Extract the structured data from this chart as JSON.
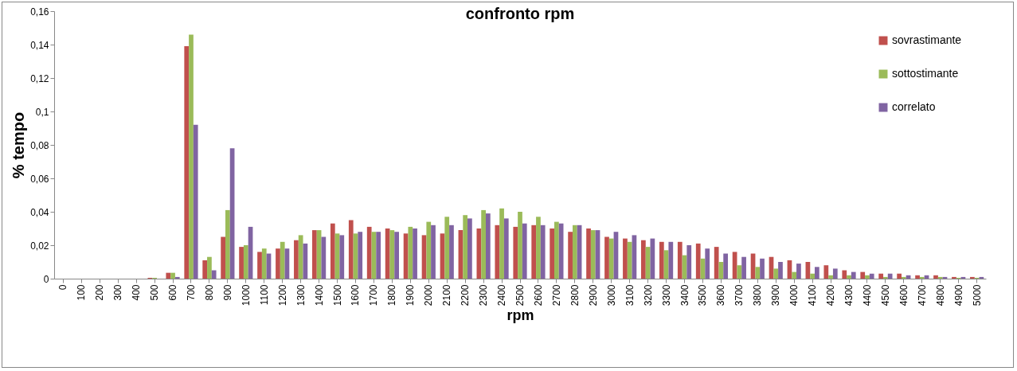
{
  "chart_data": {
    "type": "bar",
    "title": "confronto rpm",
    "xlabel": "rpm",
    "ylabel": "% tempo",
    "categories": [
      "0",
      "100",
      "200",
      "300",
      "400",
      "500",
      "600",
      "700",
      "800",
      "900",
      "1000",
      "1100",
      "1200",
      "1300",
      "1400",
      "1500",
      "1600",
      "1700",
      "1800",
      "1900",
      "2000",
      "2100",
      "2200",
      "2300",
      "2400",
      "2500",
      "2600",
      "2700",
      "2800",
      "2900",
      "3000",
      "3100",
      "3200",
      "3300",
      "3400",
      "3500",
      "3600",
      "3700",
      "3800",
      "3900",
      "4000",
      "4100",
      "4200",
      "4300",
      "4400",
      "4500",
      "4600",
      "4700",
      "4800",
      "4900",
      "5000"
    ],
    "series": [
      {
        "name": "sovrastimante",
        "color": "#c0504d",
        "values": [
          0,
          0,
          0,
          0,
          0,
          0.0005,
          0.0035,
          0.139,
          0.011,
          0.025,
          0.019,
          0.016,
          0.018,
          0.023,
          0.029,
          0.033,
          0.035,
          0.031,
          0.03,
          0.027,
          0.026,
          0.027,
          0.029,
          0.03,
          0.032,
          0.031,
          0.032,
          0.03,
          0.028,
          0.03,
          0.025,
          0.024,
          0.023,
          0.022,
          0.022,
          0.021,
          0.019,
          0.016,
          0.015,
          0.013,
          0.011,
          0.01,
          0.008,
          0.005,
          0.004,
          0.003,
          0.003,
          0.002,
          0.002,
          0.001,
          0.001
        ]
      },
      {
        "name": "sottostimante",
        "color": "#9bbb59",
        "values": [
          0,
          0,
          0,
          0,
          0,
          0.0005,
          0.0035,
          0.146,
          0.013,
          0.041,
          0.02,
          0.018,
          0.022,
          0.026,
          0.029,
          0.027,
          0.027,
          0.028,
          0.029,
          0.031,
          0.034,
          0.037,
          0.038,
          0.041,
          0.042,
          0.04,
          0.037,
          0.034,
          0.032,
          0.029,
          0.024,
          0.022,
          0.019,
          0.017,
          0.014,
          0.012,
          0.01,
          0.008,
          0.007,
          0.006,
          0.004,
          0.003,
          0.002,
          0.002,
          0.002,
          0.001,
          0.001,
          0.001,
          0.001,
          0.0005,
          0.0005
        ]
      },
      {
        "name": "correlato",
        "color": "#8064a2",
        "values": [
          0,
          0,
          0,
          0,
          0,
          0,
          0.001,
          0.092,
          0.005,
          0.078,
          0.031,
          0.015,
          0.018,
          0.021,
          0.025,
          0.026,
          0.028,
          0.028,
          0.028,
          0.03,
          0.032,
          0.032,
          0.036,
          0.039,
          0.036,
          0.033,
          0.032,
          0.033,
          0.032,
          0.029,
          0.028,
          0.026,
          0.024,
          0.022,
          0.02,
          0.018,
          0.015,
          0.013,
          0.012,
          0.01,
          0.009,
          0.007,
          0.006,
          0.004,
          0.003,
          0.003,
          0.002,
          0.002,
          0.001,
          0.001,
          0.001
        ]
      }
    ],
    "ylim": [
      0,
      0.16
    ],
    "yticks": [
      0,
      {
        "value": 0.02,
        "label": "0,02"
      },
      {
        "value": 0.04,
        "label": "0,04"
      },
      {
        "value": 0.06,
        "label": "0,06"
      },
      {
        "value": 0.08,
        "label": "0,08"
      },
      {
        "value": 0.1,
        "label": "0,1"
      },
      {
        "value": 0.12,
        "label": "0,12"
      },
      {
        "value": 0.14,
        "label": "0,14"
      },
      {
        "value": 0.16,
        "label": "0,16"
      }
    ],
    "grid": false,
    "legend": "top right"
  }
}
